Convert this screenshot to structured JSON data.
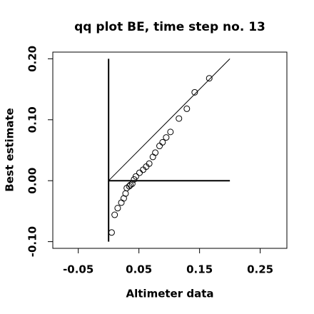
{
  "chart_data": {
    "type": "scatter",
    "title": "qq plot BE, time step no. 13",
    "x_label": "Altimeter data",
    "y_label": "Best estimate",
    "xlim": [
      -0.092,
      0.294
    ],
    "ylim": [
      -0.111,
      0.211
    ],
    "xticks": [
      -0.05,
      0.05,
      0.15,
      0.25
    ],
    "yticks": [
      {
        "value": -0.1,
        "label": "-0.10"
      },
      {
        "value": 0,
        "label": "0.00"
      },
      {
        "value": 0.1,
        "label": "0.10"
      },
      {
        "value": 0.2,
        "label": "0.20"
      }
    ],
    "color": "#000000",
    "x": [
      0.005,
      0.01,
      0.015,
      0.021,
      0.025,
      0.028,
      0.03,
      0.034,
      0.036,
      0.039,
      0.042,
      0.045,
      0.051,
      0.057,
      0.062,
      0.067,
      0.073,
      0.077,
      0.084,
      0.089,
      0.095,
      0.102,
      0.116,
      0.129,
      0.142,
      0.166
    ],
    "values": [
      -0.085,
      -0.056,
      -0.045,
      -0.036,
      -0.029,
      -0.021,
      -0.012,
      -0.009,
      -0.007,
      -0.005,
      0.002,
      0.007,
      0.013,
      0.018,
      0.023,
      0.028,
      0.039,
      0.046,
      0.057,
      0.063,
      0.071,
      0.08,
      0.102,
      0.118,
      0.145,
      0.168
    ],
    "reference_lines": [
      {
        "x": [
          0,
          0
        ],
        "y": [
          -0.1,
          0.2
        ]
      },
      {
        "x": [
          0,
          0.2
        ],
        "y": [
          0,
          0
        ]
      },
      {
        "x": [
          0,
          0.2
        ],
        "y": [
          0,
          0.2
        ]
      }
    ]
  }
}
